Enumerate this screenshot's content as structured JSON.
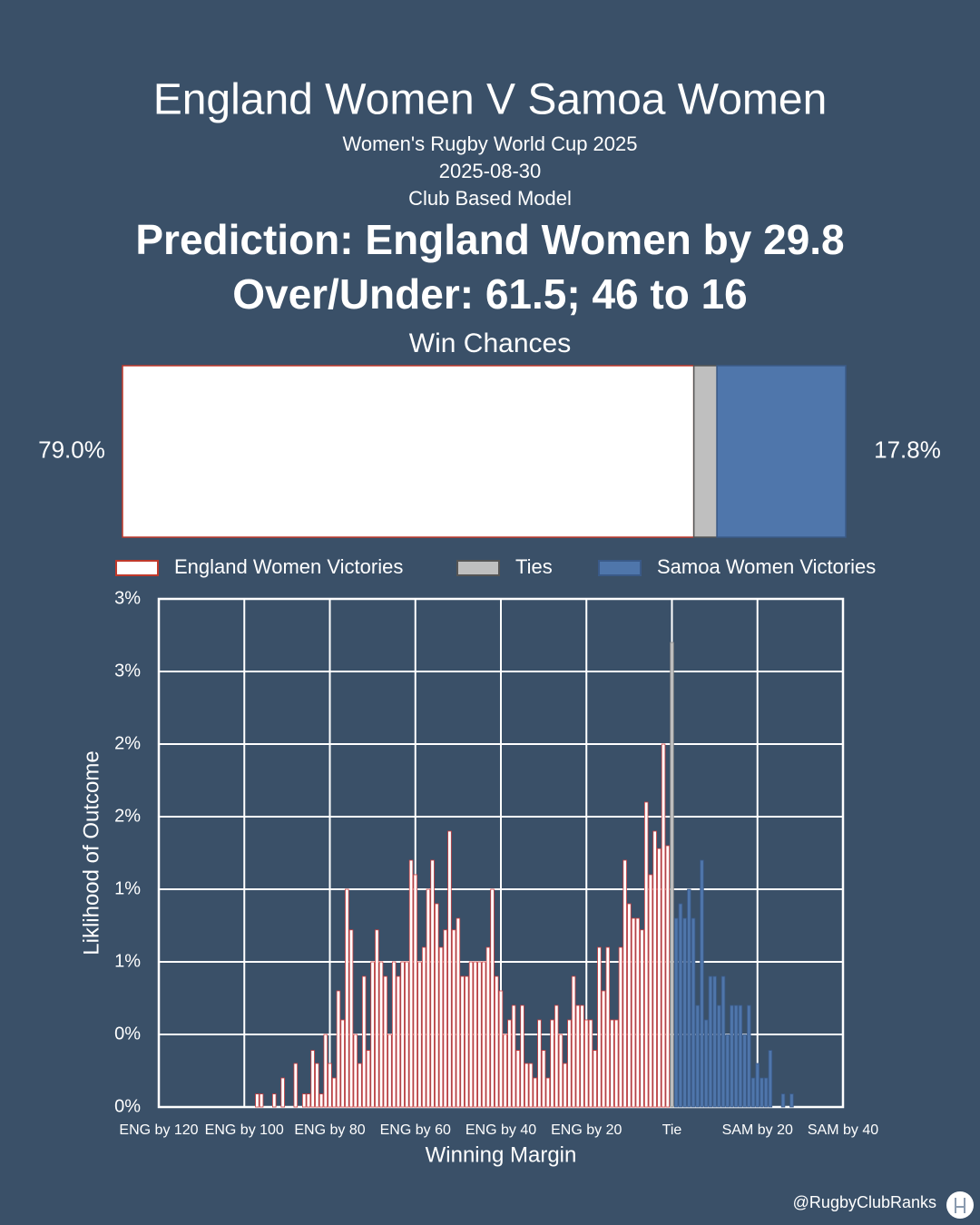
{
  "header": {
    "title": "England Women V Samoa Women",
    "competition": "Women's Rugby World Cup 2025",
    "date": "2025-08-30",
    "model": "Club Based Model",
    "prediction": "Prediction: England Women by 29.8",
    "over_under": "Over/Under: 61.5; 46 to 16",
    "footer": "@RugbyClubRanks"
  },
  "chart_data": [
    {
      "type": "stacked-bar",
      "title": "Win Chances",
      "xlim": [
        0,
        100
      ],
      "series": [
        {
          "name": "England Women Victories",
          "color": "#ffffff",
          "edge": "#c0392b",
          "values": [
            79.0
          ],
          "value_labels": [
            "79.0%"
          ]
        },
        {
          "name": "Ties",
          "color": "#bfbfbf",
          "edge": "#555555",
          "values": [
            3.2
          ]
        },
        {
          "name": "Samoa Women Victories",
          "color": "#4f76ab",
          "edge": "#3a5a88",
          "values": [
            17.8
          ],
          "value_labels": [
            "17.8%"
          ]
        }
      ]
    },
    {
      "type": "histogram",
      "x_label": "Winning Margin",
      "y_label": "Liklihood of Outcome",
      "grid": true,
      "xlim": [
        -120,
        40
      ],
      "ylim": [
        0,
        3.5
      ],
      "xticks": [
        {
          "value": -120,
          "label": "ENG by 120"
        },
        {
          "value": -100,
          "label": "ENG by 100"
        },
        {
          "value": -80,
          "label": "ENG by 80"
        },
        {
          "value": -60,
          "label": "ENG by 60"
        },
        {
          "value": -40,
          "label": "ENG by 40"
        },
        {
          "value": -20,
          "label": "ENG by 20"
        },
        {
          "value": 0,
          "label": "Tie"
        },
        {
          "value": 20,
          "label": "SAM by 20"
        },
        {
          "value": 40,
          "label": "SAM by 40"
        }
      ],
      "yticks": [
        {
          "value": 0,
          "label": "0%"
        },
        {
          "value": 0.5,
          "label": "0%"
        },
        {
          "value": 1,
          "label": "1%"
        },
        {
          "value": 1.5,
          "label": "1%"
        },
        {
          "value": 2,
          "label": "2%"
        },
        {
          "value": 2.5,
          "label": "2%"
        },
        {
          "value": 3,
          "label": "3%"
        },
        {
          "value": 3.5,
          "label": "3%"
        }
      ],
      "series": [
        {
          "color": "#ffffff",
          "edge": "#d04040",
          "x": [
            -97,
            -96,
            -95,
            -94,
            -93,
            -92,
            -91,
            -90,
            -89,
            -88,
            -87,
            -86,
            -85,
            -84,
            -83,
            -82,
            -81,
            -80,
            -79,
            -78,
            -77,
            -76,
            -75,
            -74,
            -73,
            -72,
            -71,
            -70,
            -69,
            -68,
            -67,
            -66,
            -65,
            -64,
            -63,
            -62,
            -61,
            -60,
            -59,
            -58,
            -57,
            -56,
            -55,
            -54,
            -53,
            -52,
            -51,
            -50,
            -49,
            -48,
            -47,
            -46,
            -45,
            -44,
            -43,
            -42,
            -41,
            -40,
            -39,
            -38,
            -37,
            -36,
            -35,
            -34,
            -33,
            -32,
            -31,
            -30,
            -29,
            -28,
            -27,
            -26,
            -25,
            -24,
            -23,
            -22,
            -21,
            -20,
            -19,
            -18,
            -17,
            -16,
            -15,
            -14,
            -13,
            -12,
            -11,
            -10,
            -9,
            -8,
            -7,
            -6,
            -5,
            -4,
            -3,
            -2,
            -1
          ],
          "values": [
            0.09,
            0.09,
            0,
            0,
            0.09,
            0,
            0.2,
            0,
            0,
            0.3,
            0,
            0.09,
            0.09,
            0.39,
            0.3,
            0.09,
            0.5,
            0.3,
            0.2,
            0.8,
            0.6,
            1.5,
            1.22,
            0.5,
            0.3,
            0.9,
            0.39,
            1.0,
            1.22,
            1.0,
            0.9,
            0.5,
            1.0,
            0.9,
            1.0,
            1.0,
            1.7,
            1.6,
            1.0,
            1.1,
            1.5,
            1.7,
            1.4,
            1.1,
            1.22,
            1.9,
            1.22,
            1.3,
            0.9,
            0.9,
            1.0,
            1.0,
            1.0,
            1.0,
            1.1,
            1.5,
            0.9,
            0.8,
            0.5,
            0.6,
            0.7,
            0.39,
            0.7,
            0.3,
            0.3,
            0.2,
            0.6,
            0.39,
            0.2,
            0.6,
            0.7,
            0.5,
            0.3,
            0.6,
            0.9,
            0.7,
            0.7,
            0.6,
            0.6,
            0.39,
            1.1,
            0.8,
            1.1,
            0.6,
            0.6,
            1.1,
            1.7,
            1.4,
            1.3,
            1.3,
            1.22,
            2.1,
            1.6,
            1.9,
            1.78,
            2.5,
            1.8
          ]
        },
        {
          "color": "#bfbfbf",
          "edge": "#888888",
          "x": [
            0
          ],
          "values": [
            3.2
          ]
        },
        {
          "color": "#4f76ab",
          "edge": "#3a5a88",
          "x": [
            1,
            2,
            3,
            4,
            5,
            6,
            7,
            8,
            9,
            10,
            11,
            12,
            13,
            14,
            15,
            16,
            17,
            18,
            19,
            20,
            21,
            22,
            23,
            24,
            25,
            26,
            27,
            28
          ],
          "values": [
            1.3,
            1.4,
            1.3,
            1.5,
            1.3,
            0.7,
            1.7,
            0.6,
            0.9,
            0.9,
            0.7,
            0.9,
            0.5,
            0.7,
            0.7,
            0.7,
            0.5,
            0.7,
            0.2,
            0.3,
            0.2,
            0.2,
            0.39,
            0,
            0,
            0.09,
            0,
            0.09
          ]
        }
      ]
    }
  ]
}
